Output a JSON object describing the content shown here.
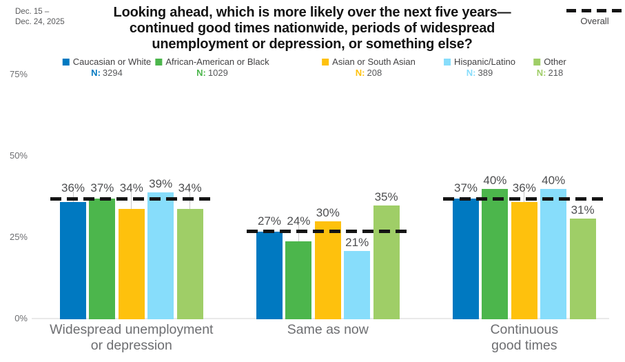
{
  "meta": {
    "date_range_line1": "Dec. 15 –",
    "date_range_line2": "Dec. 24, 2025"
  },
  "header": {
    "title_lines": [
      "Looking ahead, which is more likely over the next five years—",
      "continued good times nationwide, periods of widespread",
      "unemployment or depression, or something else?"
    ]
  },
  "chart_data": {
    "type": "bar",
    "title": "Looking ahead, which is more likely over the next five years—continued good times nationwide, periods of widespread unemployment or depression, or something else?",
    "date_range": "Dec. 15 – Dec. 24, 2025",
    "categories": [
      "Widespread unemployment or depression",
      "Same as now",
      "Continuous good times"
    ],
    "category_label_lines": [
      [
        "Widespread unemployment",
        "or depression"
      ],
      [
        "Same as now"
      ],
      [
        "Continuous",
        "good times"
      ]
    ],
    "series": [
      {
        "name": "Caucasian or White",
        "n": "3294",
        "color": "#0079c1",
        "values": [
          36,
          27,
          37
        ]
      },
      {
        "name": "African-American or Black",
        "n": "1029",
        "color": "#4cb64c",
        "values": [
          37,
          24,
          40
        ]
      },
      {
        "name": "Asian or South Asian",
        "n": "208",
        "color": "#fec10d",
        "values": [
          34,
          30,
          36
        ]
      },
      {
        "name": "Hispanic/Latino",
        "n": "389",
        "color": "#87ddfb",
        "values": [
          39,
          21,
          40
        ]
      },
      {
        "name": "Other",
        "n": "218",
        "color": "#9fce67",
        "values": [
          34,
          35,
          31
        ]
      }
    ],
    "overall_series": {
      "name": "Overall",
      "values": [
        37,
        27,
        37
      ]
    },
    "n_prefix": "N:",
    "value_suffix": "%",
    "ylim": [
      0,
      75
    ],
    "yticks": [
      {
        "label": "0%",
        "value": 0
      },
      {
        "label": "25%",
        "value": 25
      },
      {
        "label": "50%",
        "value": 50
      },
      {
        "label": "75%",
        "value": 75
      }
    ],
    "grid": false,
    "legend_position": "top",
    "overall_line_color": "#141414"
  }
}
